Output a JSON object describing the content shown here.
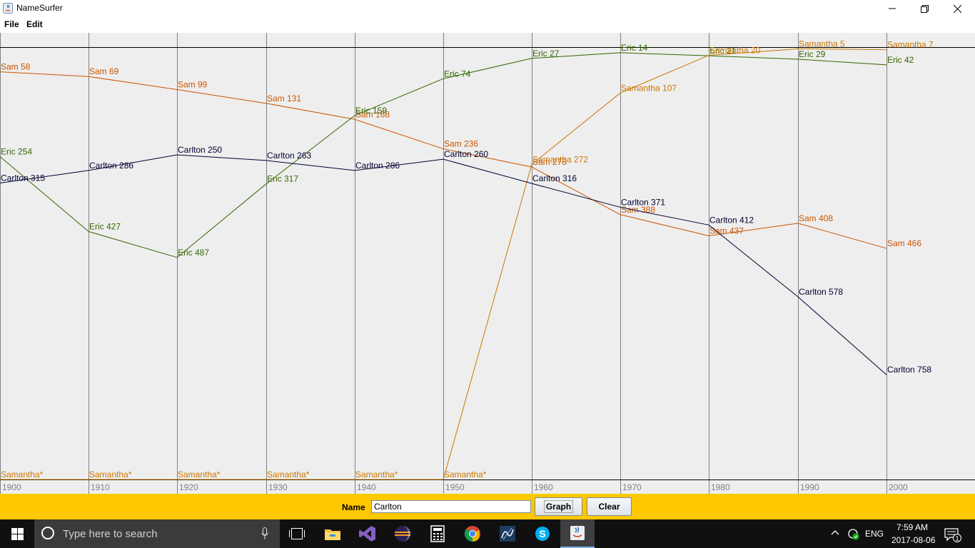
{
  "window": {
    "title": "NameSurfer",
    "minimize_icon": "minimize-icon",
    "maximize_icon": "restore-icon",
    "close_icon": "close-icon"
  },
  "menu": {
    "items": [
      "File",
      "Edit"
    ]
  },
  "graph": {
    "decades": [
      "1900",
      "1910",
      "1920",
      "1930",
      "1940",
      "1950",
      "1960",
      "1970",
      "1980",
      "1990",
      "2000"
    ],
    "max_rank": 1000,
    "background": "#eeeeee"
  },
  "chart_data": {
    "type": "line",
    "x": [
      "1900",
      "1910",
      "1920",
      "1930",
      "1940",
      "1950",
      "1960",
      "1970",
      "1980",
      "1990",
      "2000"
    ],
    "ylim": [
      1,
      1000
    ],
    "y_inverted": true,
    "unranked_marker": "*",
    "series": [
      {
        "name": "Sam",
        "color": "#cc5500",
        "ranks": [
          58,
          69,
          99,
          131,
          168,
          236,
          278,
          388,
          437,
          408,
          466
        ],
        "labels": [
          "Sam 58",
          "Sam 69",
          "Sam 99",
          "Sam 131",
          "Sam 168",
          "Sam 236",
          "Sam 278",
          "Sam 388",
          "Sam 437",
          "Sam 408",
          "Sam 466"
        ]
      },
      {
        "name": "Eric",
        "color": "#336600",
        "ranks": [
          254,
          427,
          487,
          317,
          159,
          74,
          27,
          14,
          21,
          29,
          42
        ],
        "labels": [
          "Eric 254",
          "Eric 427",
          "Eric 487",
          "Eric 317",
          "Eric 159",
          "Eric 74",
          "Eric 27",
          "Eric 14",
          "Eric 21",
          "Eric 29",
          "Eric 42"
        ]
      },
      {
        "name": "Samantha",
        "color": "#cc7700",
        "ranks": [
          0,
          0,
          0,
          0,
          0,
          0,
          272,
          107,
          20,
          5,
          7
        ],
        "labels": [
          "Samantha*",
          "Samantha*",
          "Samantha*",
          "Samantha*",
          "Samantha*",
          "Samantha*",
          "Samantha 272",
          "Samantha 107",
          "Samantha 20",
          "Samantha 5",
          "Samantha 7"
        ]
      },
      {
        "name": "Carlton",
        "color": "#000033",
        "ranks": [
          315,
          286,
          250,
          263,
          286,
          260,
          316,
          371,
          412,
          578,
          758
        ],
        "labels": [
          "Carlton 315",
          "Carlton 286",
          "Carlton 250",
          "Carlton 263",
          "Carlton 286",
          "Carlton 260",
          "Carlton 316",
          "Carlton 371",
          "Carlton 412",
          "Carlton 578",
          "Carlton 758"
        ]
      }
    ]
  },
  "controls": {
    "name_label": "Name",
    "name_value": "Carlton",
    "graph_button": "Graph",
    "clear_button": "Clear"
  },
  "taskbar": {
    "search_placeholder": "Type here to search",
    "apps": [
      "file-explorer-icon",
      "visual-studio-icon",
      "eclipse-icon",
      "calculator-icon",
      "chrome-icon",
      "sql-server-icon",
      "skype-icon",
      "java-icon"
    ],
    "language": "ENG",
    "time": "7:59 AM",
    "date": "2017-08-06",
    "notification_count": "1"
  }
}
